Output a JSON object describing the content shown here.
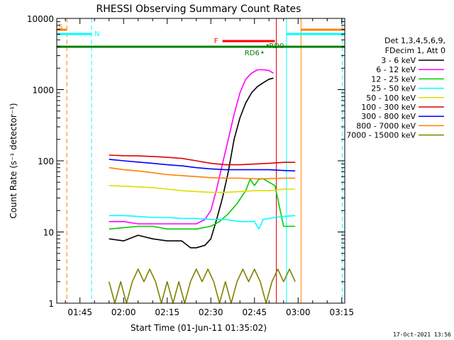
{
  "chart_data": {
    "type": "line",
    "title": "RHESSI Observing Summary Count Rates",
    "xlabel": "Start Time (01-Jun-11 01:35:02)",
    "ylabel": "Count Rate (s⁻¹ detector⁻¹)",
    "ylog": true,
    "ylim": [
      1,
      10000
    ],
    "xlim": [
      97.03,
      196.03
    ],
    "x_unit": "minutes after 00:00 UT",
    "x_ticks": [
      "01:45",
      "02:00",
      "02:15",
      "02:30",
      "02:45",
      "03:00",
      "03:15"
    ],
    "x_tick_values": [
      105,
      120,
      135,
      150,
      165,
      180,
      195
    ],
    "y_ticks": [
      "1",
      "10",
      "100",
      "1000",
      "10000"
    ],
    "y_tick_values": [
      1,
      10,
      100,
      1000,
      10000
    ],
    "legend_header": [
      "Det 1,3,4,5,6,9,",
      "FDecim 1, Att 0"
    ],
    "legend_position": "right",
    "series": [
      {
        "name": "3 - 6 keV",
        "color": "#000000",
        "x": [
          115,
          120,
          125,
          130,
          135,
          140,
          143,
          145,
          148,
          150,
          152,
          154,
          156,
          158,
          160,
          162,
          164,
          166,
          168,
          170,
          171.5
        ],
        "y": [
          8,
          7.5,
          9,
          8,
          7.5,
          7.5,
          6,
          6,
          6.5,
          8,
          15,
          30,
          70,
          200,
          400,
          650,
          900,
          1100,
          1250,
          1400,
          1450
        ]
      },
      {
        "name": "6 - 12 keV",
        "color": "#ff00ff",
        "x": [
          115,
          120,
          125,
          130,
          135,
          140,
          145,
          148,
          150,
          152,
          154,
          156,
          158,
          160,
          162,
          164,
          166,
          168,
          170,
          171.5
        ],
        "y": [
          14,
          14,
          13,
          13,
          13,
          13,
          13,
          15,
          20,
          40,
          90,
          200,
          450,
          900,
          1400,
          1700,
          1900,
          1900,
          1850,
          1700
        ]
      },
      {
        "name": "12 - 25 keV",
        "color": "#00cc00",
        "x": [
          115,
          120,
          125,
          130,
          135,
          140,
          145,
          150,
          153,
          156,
          159,
          162,
          163.5,
          165,
          166.5,
          168,
          170,
          172,
          175,
          179
        ],
        "y": [
          11,
          11.5,
          12,
          12,
          11,
          11,
          11,
          12,
          14,
          18,
          25,
          38,
          55,
          45,
          55,
          56,
          50,
          45,
          12,
          12
        ]
      },
      {
        "name": "25 - 50 keV",
        "color": "#00ffff",
        "x": [
          115,
          120,
          125,
          130,
          135,
          140,
          145,
          150,
          155,
          160,
          165,
          166.5,
          168,
          172,
          175,
          179
        ],
        "y": [
          17,
          17,
          16.5,
          16,
          16,
          15.5,
          15.5,
          15,
          15,
          14,
          14,
          11,
          15,
          16,
          16.5,
          17
        ]
      },
      {
        "name": "50 - 100 keV",
        "color": "#dddd00",
        "x": [
          115,
          120,
          125,
          130,
          135,
          140,
          145,
          150,
          155,
          160,
          165,
          170,
          175,
          179
        ],
        "y": [
          45,
          44,
          43,
          42,
          40,
          38,
          37,
          36,
          36,
          37,
          38,
          38,
          40,
          40
        ]
      },
      {
        "name": "100 - 300 keV",
        "color": "#dd0000",
        "x": [
          115,
          120,
          125,
          130,
          135,
          140,
          145,
          150,
          155,
          160,
          165,
          170,
          175,
          179
        ],
        "y": [
          120,
          118,
          117,
          115,
          112,
          108,
          100,
          92,
          88,
          88,
          90,
          92,
          95,
          95
        ]
      },
      {
        "name": "300 - 800 keV",
        "color": "#0000ff",
        "x": [
          115,
          120,
          125,
          130,
          135,
          140,
          145,
          150,
          155,
          160,
          165,
          170,
          175,
          179
        ],
        "y": [
          105,
          100,
          96,
          92,
          88,
          85,
          80,
          77,
          75,
          75,
          75,
          75,
          73,
          72
        ]
      },
      {
        "name": "800 - 7000 keV",
        "color": "#ff8000",
        "x": [
          115,
          120,
          125,
          130,
          135,
          140,
          145,
          150,
          155,
          160,
          165,
          170,
          175,
          179
        ],
        "y": [
          80,
          75,
          72,
          68,
          64,
          62,
          60,
          58,
          57,
          57,
          56,
          56,
          57,
          57
        ]
      },
      {
        "name": "7000 - 15000 keV",
        "color": "#808000",
        "x": [
          115,
          117,
          119,
          121,
          123,
          125,
          127,
          129,
          131,
          133,
          135,
          137,
          139,
          141,
          143,
          145,
          147,
          149,
          151,
          153,
          155,
          157,
          159,
          161,
          163,
          165,
          167,
          169,
          171,
          173,
          175,
          177,
          179
        ],
        "y": [
          2,
          1,
          2,
          1,
          2,
          3,
          2,
          3,
          2,
          1,
          2,
          1,
          2,
          1,
          2,
          3,
          2,
          3,
          2,
          1,
          2,
          1,
          2,
          3,
          2,
          3,
          2,
          1,
          2,
          3,
          2,
          3,
          2
        ]
      }
    ],
    "flags": {
      "attenuator_S": {
        "label": "S",
        "color": "#ff8000"
      },
      "night_N": {
        "label": "N",
        "color": "#00ffff"
      },
      "flare_F": {
        "label": "F",
        "color": "#ff0000"
      },
      "saa_line": {
        "color": "#008000"
      },
      "rd0": {
        "label": "RD0",
        "color": "#008000"
      },
      "rd6": {
        "label": "RD6",
        "color": "#008000"
      }
    },
    "flag_intervals": {
      "attenuator_S": [
        [
          97.03,
          100.5
        ],
        [
          181,
          196.03
        ]
      ],
      "night_N": [
        [
          97.03,
          109
        ],
        [
          176,
          196.03
        ]
      ],
      "flare_F": [
        [
          154,
          172
        ]
      ],
      "saa_line": [
        [
          97.03,
          196.03
        ]
      ]
    },
    "flag_points": {
      "rd0": 170.5,
      "rd6": 168.2
    },
    "vlines": [
      {
        "x": 100.5,
        "color": "#ff8000",
        "dashed": true
      },
      {
        "x": 109,
        "color": "#00ffff",
        "dashed": true
      },
      {
        "x": 176,
        "color": "#00ffff",
        "dashed": false
      },
      {
        "x": 181,
        "color": "#ff8000",
        "dashed": false
      },
      {
        "x": 195.2,
        "color": "#00ffff",
        "dashed": true
      },
      {
        "x": 172.5,
        "color": "#dd0000",
        "dashed": false
      }
    ]
  },
  "timestamp": "17-Oct-2021 13:56"
}
